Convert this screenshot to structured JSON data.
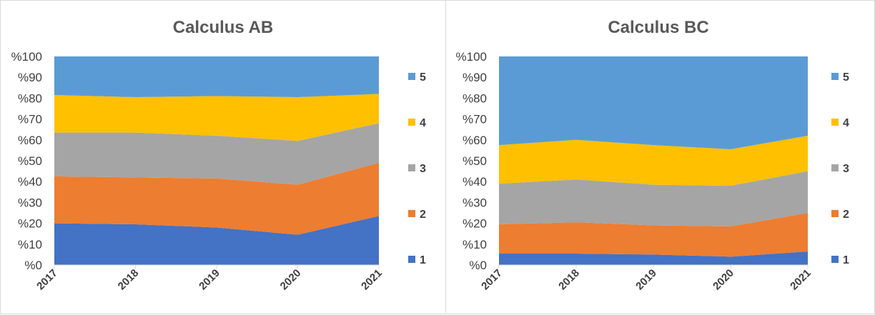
{
  "chart_data": [
    {
      "type": "area",
      "stacked": true,
      "percent": true,
      "title": "Calculus AB",
      "categories": [
        "2017",
        "2018",
        "2019",
        "2020",
        "2021"
      ],
      "y_ticks": [
        "%0",
        "%10",
        "%20",
        "%30",
        "%40",
        "%50",
        "%60",
        "%70",
        "%80",
        "%90",
        "%100"
      ],
      "ylim": [
        0,
        100
      ],
      "grid": false,
      "legend_position": "right",
      "series": [
        {
          "name": "1",
          "color": "#4472C4",
          "values": [
            20,
            19.5,
            18,
            14.5,
            23.5
          ]
        },
        {
          "name": "2",
          "color": "#ED7D31",
          "values": [
            22.5,
            22.5,
            23.5,
            24,
            25.5
          ]
        },
        {
          "name": "3",
          "color": "#A5A5A5",
          "values": [
            21,
            21.5,
            20.5,
            21,
            19
          ]
        },
        {
          "name": "4",
          "color": "#FFC000",
          "values": [
            18,
            17,
            19,
            21,
            14
          ]
        },
        {
          "name": "5",
          "color": "#5B9BD5",
          "values": [
            18.5,
            19.5,
            19,
            19.5,
            18
          ]
        }
      ]
    },
    {
      "type": "area",
      "stacked": true,
      "percent": true,
      "title": "Calculus BC",
      "categories": [
        "2017",
        "2018",
        "2019",
        "2020",
        "2021"
      ],
      "y_ticks": [
        "%0",
        "%10",
        "%20",
        "%30",
        "%40",
        "%50",
        "%60",
        "%70",
        "%80",
        "%90",
        "%100"
      ],
      "ylim": [
        0,
        100
      ],
      "grid": false,
      "legend_position": "right",
      "series": [
        {
          "name": "1",
          "color": "#4472C4",
          "values": [
            5.5,
            5.5,
            5,
            4,
            6.5
          ]
        },
        {
          "name": "2",
          "color": "#ED7D31",
          "values": [
            14,
            15,
            14,
            14.5,
            18.5
          ]
        },
        {
          "name": "3",
          "color": "#A5A5A5",
          "values": [
            19.5,
            20.5,
            19.5,
            19.5,
            20
          ]
        },
        {
          "name": "4",
          "color": "#FFC000",
          "values": [
            18.5,
            19,
            19,
            17.5,
            17
          ]
        },
        {
          "name": "5",
          "color": "#5B9BD5",
          "values": [
            42.5,
            40,
            42.5,
            44.5,
            38
          ]
        }
      ]
    }
  ]
}
